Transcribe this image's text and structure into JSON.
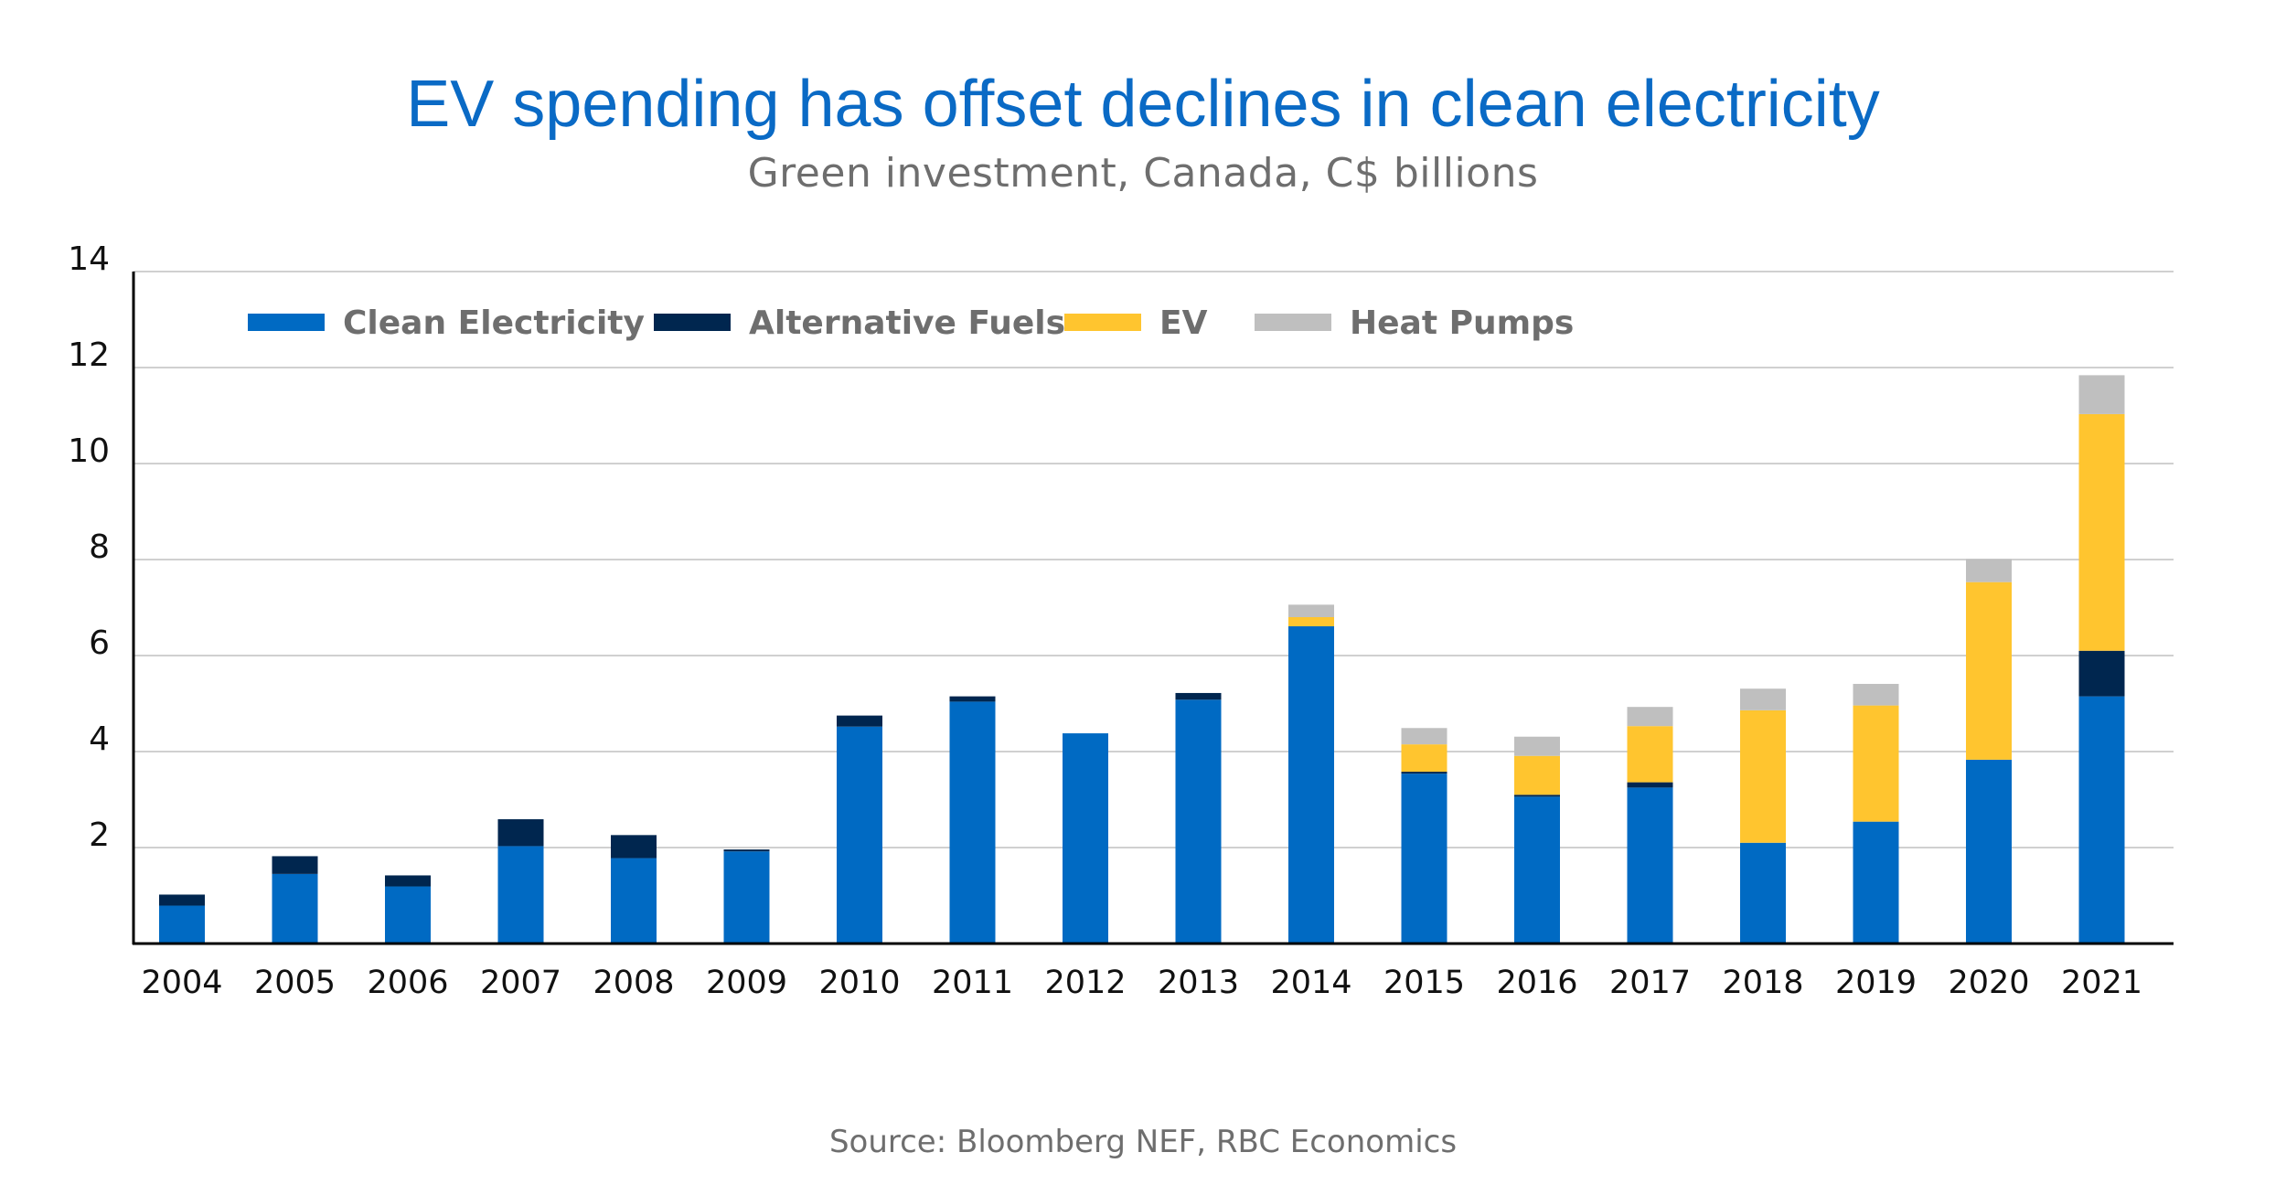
{
  "header": {
    "title": "EV spending has offset declines in clean electricity",
    "subtitle": "Green investment, Canada, C$ billions"
  },
  "footer": {
    "source": "Source: Bloomberg NEF, RBC Economics"
  },
  "colors": {
    "title": "#0A6AC5",
    "clean_electricity": "#006AC3",
    "alternative_fuels": "#00264F",
    "ev": "#FFC52F",
    "heat_pumps": "#BFBFBF",
    "gridline": "#D0D0D0",
    "axis": "#000000"
  },
  "chart_data": {
    "type": "bar",
    "stacked": true,
    "title": "EV spending has offset declines in clean electricity",
    "subtitle": "Green investment, Canada, C$ billions",
    "xlabel": "",
    "ylabel": "C$ billions",
    "ylim": [
      0,
      14
    ],
    "yticks": [
      2,
      4,
      6,
      8,
      10,
      12,
      14
    ],
    "grid": true,
    "legend_position": "top-left",
    "categories": [
      "2004",
      "2005",
      "2006",
      "2007",
      "2008",
      "2009",
      "2010",
      "2011",
      "2012",
      "2013",
      "2014",
      "2015",
      "2016",
      "2017",
      "2018",
      "2019",
      "2020",
      "2021"
    ],
    "series": [
      {
        "name": "Clean Electricity",
        "color_key": "clean_electricity",
        "values": [
          0.79,
          1.45,
          1.19,
          2.03,
          1.78,
          1.92,
          4.52,
          5.04,
          4.38,
          5.08,
          6.61,
          3.54,
          3.06,
          3.25,
          2.1,
          2.54,
          3.83,
          5.15
        ]
      },
      {
        "name": "Alternative Fuels",
        "color_key": "alternative_fuels",
        "values": [
          0.23,
          0.37,
          0.23,
          0.56,
          0.48,
          0.04,
          0.23,
          0.11,
          0.0,
          0.14,
          0.0,
          0.04,
          0.04,
          0.11,
          0.0,
          0.0,
          0.0,
          0.95
        ]
      },
      {
        "name": "EV",
        "color_key": "ev",
        "values": [
          0.0,
          0.0,
          0.0,
          0.0,
          0.0,
          0.0,
          0.0,
          0.0,
          0.0,
          0.0,
          0.19,
          0.57,
          0.81,
          1.17,
          2.76,
          2.42,
          3.7,
          4.93
        ]
      },
      {
        "name": "Heat Pumps",
        "color_key": "heat_pumps",
        "values": [
          0.0,
          0.0,
          0.0,
          0.0,
          0.0,
          0.0,
          0.0,
          0.0,
          0.0,
          0.0,
          0.26,
          0.34,
          0.4,
          0.4,
          0.45,
          0.45,
          0.48,
          0.81
        ]
      }
    ]
  }
}
